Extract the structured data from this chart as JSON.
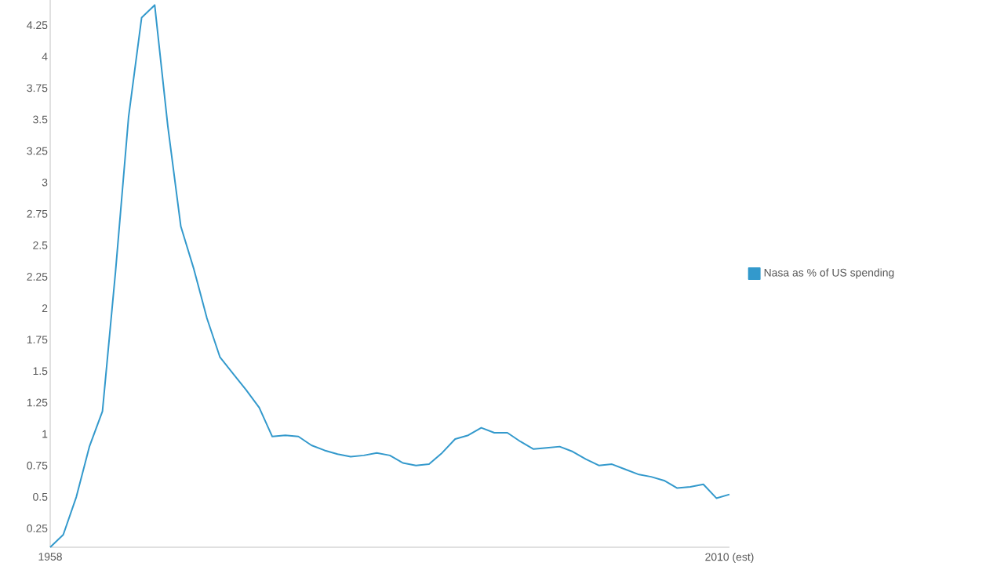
{
  "chart_data": {
    "type": "line",
    "x": [
      1958,
      1959,
      1960,
      1961,
      1962,
      1963,
      1964,
      1965,
      1966,
      1967,
      1968,
      1969,
      1970,
      1971,
      1972,
      1973,
      1974,
      1975,
      1976,
      1977,
      1978,
      1979,
      1980,
      1981,
      1982,
      1983,
      1984,
      1985,
      1986,
      1987,
      1988,
      1989,
      1990,
      1991,
      1992,
      1993,
      1994,
      1995,
      1996,
      1997,
      1998,
      1999,
      2000,
      2001,
      2002,
      2003,
      2004,
      2005,
      2006,
      2007,
      2008,
      2009,
      2010
    ],
    "series": [
      {
        "name": "Nasa as % of US spending",
        "color": "#3399cc",
        "values": [
          0.1,
          0.2,
          0.5,
          0.9,
          1.18,
          2.29,
          3.52,
          4.31,
          4.41,
          3.45,
          2.65,
          2.31,
          1.92,
          1.61,
          1.48,
          1.35,
          1.21,
          0.98,
          0.99,
          0.98,
          0.91,
          0.87,
          0.84,
          0.82,
          0.83,
          0.85,
          0.83,
          0.77,
          0.75,
          0.76,
          0.85,
          0.96,
          0.99,
          1.05,
          1.01,
          1.01,
          0.94,
          0.88,
          0.89,
          0.9,
          0.86,
          0.8,
          0.75,
          0.76,
          0.72,
          0.68,
          0.66,
          0.63,
          0.57,
          0.58,
          0.6,
          0.49,
          0.52
        ]
      }
    ],
    "xlim": [
      1958,
      2010
    ],
    "xticks": [
      {
        "value": 1958,
        "label": "1958"
      },
      {
        "value": 2010,
        "label": "2010 (est)"
      }
    ],
    "ylim": [
      0.1,
      4.45
    ],
    "yticks": [
      0.25,
      0.5,
      0.75,
      1,
      1.25,
      1.5,
      1.75,
      2,
      2.25,
      2.5,
      2.75,
      3,
      3.25,
      3.5,
      3.75,
      4,
      4.25
    ],
    "grid": false,
    "legend": "right"
  }
}
